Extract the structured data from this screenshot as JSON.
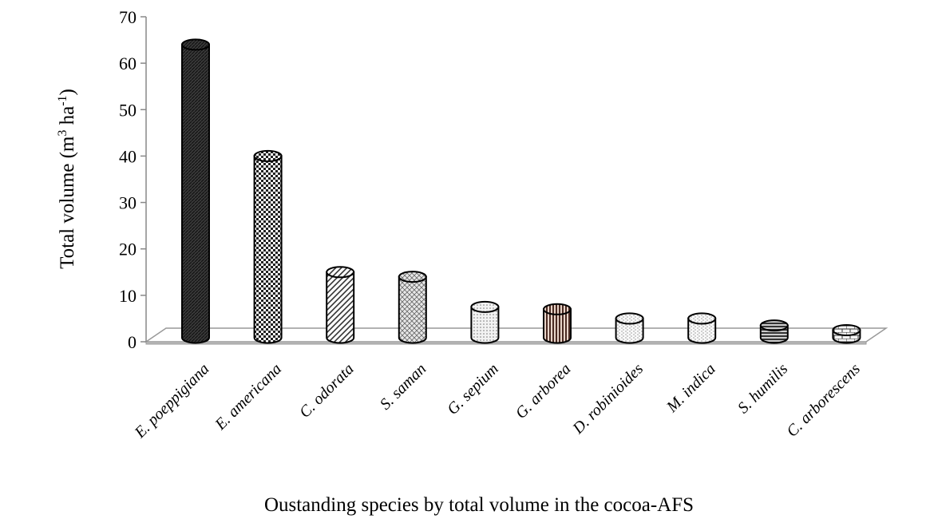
{
  "chart_data": {
    "type": "bar",
    "style": "3d-cylinder",
    "categories": [
      "E. poeppigiana",
      "E. americana",
      "C. odorata",
      "S. saman",
      "G. sepium",
      "G. arborea",
      "D. robinioides",
      "M. indica",
      "S. humilis",
      "C. arborescens"
    ],
    "values": [
      64,
      40,
      15,
      14,
      7.5,
      7,
      5,
      5,
      3.5,
      2.5
    ],
    "title": "",
    "xlabel": "Oustanding species by total volume in the cocoa-AFS",
    "ylabel": {
      "main": "Total volume (m",
      "sup1": "3",
      "mid": " ha",
      "sup2": "-1",
      "end": ")"
    },
    "ylim": [
      0,
      70
    ],
    "yticks": [
      "0",
      "10",
      "20",
      "30",
      "40",
      "50",
      "60",
      "70"
    ],
    "grid": false,
    "legend": "none",
    "patterns": [
      "dense-dark",
      "checker",
      "diagonal",
      "crosshatch",
      "dots",
      "vertical-stripes",
      "light-dots",
      "light-dots",
      "horizontal-stripes",
      "bricks"
    ]
  }
}
